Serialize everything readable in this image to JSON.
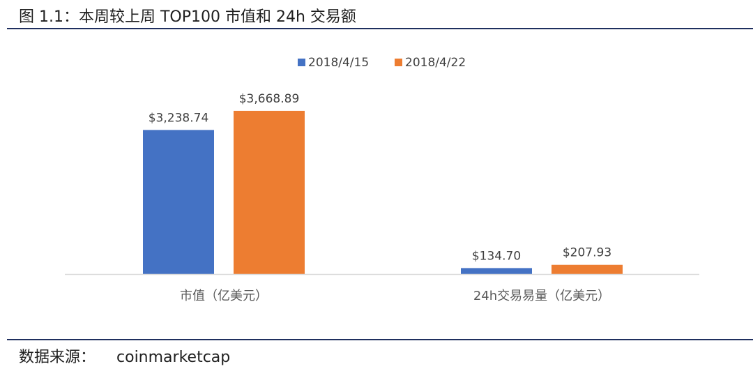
{
  "figure_title": "图 1.1：本周较上周 TOP100 市值和 24h 交易额",
  "source": {
    "label": "数据来源：",
    "value": "coinmarketcap"
  },
  "chart_data": {
    "type": "bar",
    "title": "",
    "categories": [
      "市值（亿美元）",
      "24h交易易量（亿美元）"
    ],
    "series": [
      {
        "name": "2018/4/15",
        "color": "#4472c4",
        "values": [
          3238.74,
          134.7
        ],
        "labels": [
          "$3,238.74",
          "$134.70"
        ]
      },
      {
        "name": "2018/4/22",
        "color": "#ed7d31",
        "values": [
          3668.89,
          207.93
        ],
        "labels": [
          "$3,668.89",
          "$207.93"
        ]
      }
    ],
    "ylim": [
      0,
      4000
    ],
    "grid": false,
    "y_axis_visible": false,
    "legend_position": "top-center",
    "axis_color": "#d9d9d9",
    "label_color": "#404040",
    "tick_label_color": "#595959"
  }
}
